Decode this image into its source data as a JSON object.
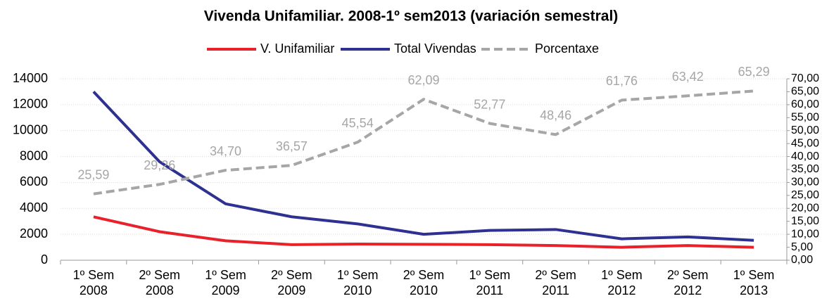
{
  "chart_data": {
    "type": "line",
    "title": "Vivenda Unifamiliar. 2008-1º sem2013 (variación semestral)",
    "categories": [
      "1º Sem 2008",
      "2º Sem 2008",
      "1º Sem 2009",
      "2º Sem 2009",
      "1º Sem 2010",
      "2º Sem 2010",
      "1º Sem 2011",
      "2º Sem 2011",
      "1º Sem 2012",
      "2º Sem 2012",
      "1º Sem 2013"
    ],
    "series": [
      {
        "name": "V. Unifamiliar",
        "color": "#e8212a",
        "values": [
          3350,
          2200,
          1500,
          1200,
          1250,
          1230,
          1200,
          1130,
          1000,
          1130,
          1000
        ]
      },
      {
        "name": "Total Vivendas",
        "color": "#2e3192",
        "values": [
          13000,
          7600,
          4350,
          3350,
          2800,
          2000,
          2300,
          2370,
          1650,
          1800,
          1530
        ]
      },
      {
        "name": "Porcentaxe",
        "color": "#a6a6a6",
        "axis": "y2",
        "dashed": true,
        "values": [
          25.59,
          29.26,
          34.7,
          36.57,
          45.54,
          62.09,
          52.77,
          48.46,
          61.76,
          63.42,
          65.29
        ],
        "value_labels": [
          "25,59",
          "29,26",
          "34,70",
          "36,57",
          "45,54",
          "62,09",
          "52,77",
          "48,46",
          "61,76",
          "63,42",
          "65,29"
        ]
      }
    ],
    "ylim": [
      0,
      14000
    ],
    "yticks": [
      0,
      2000,
      4000,
      6000,
      8000,
      10000,
      12000,
      14000
    ],
    "y2lim": [
      0,
      70
    ],
    "y2ticks": [
      {
        "value": 0,
        "label": "0,00"
      },
      {
        "value": 5,
        "label": "5,00"
      },
      {
        "value": 10,
        "label": "10,00"
      },
      {
        "value": 15,
        "label": "15,00"
      },
      {
        "value": 20,
        "label": "20,00"
      },
      {
        "value": 25,
        "label": "25,00"
      },
      {
        "value": 30,
        "label": "30,00"
      },
      {
        "value": 35,
        "label": "35,00"
      },
      {
        "value": 40,
        "label": "40,00"
      },
      {
        "value": 45,
        "label": "45,00"
      },
      {
        "value": 50,
        "label": "50,00"
      },
      {
        "value": 55,
        "label": "55,00"
      },
      {
        "value": 60,
        "label": "60,00"
      },
      {
        "value": 65,
        "label": "65,00"
      },
      {
        "value": 70,
        "label": "70,00"
      }
    ],
    "grid": true,
    "legend": "top"
  }
}
